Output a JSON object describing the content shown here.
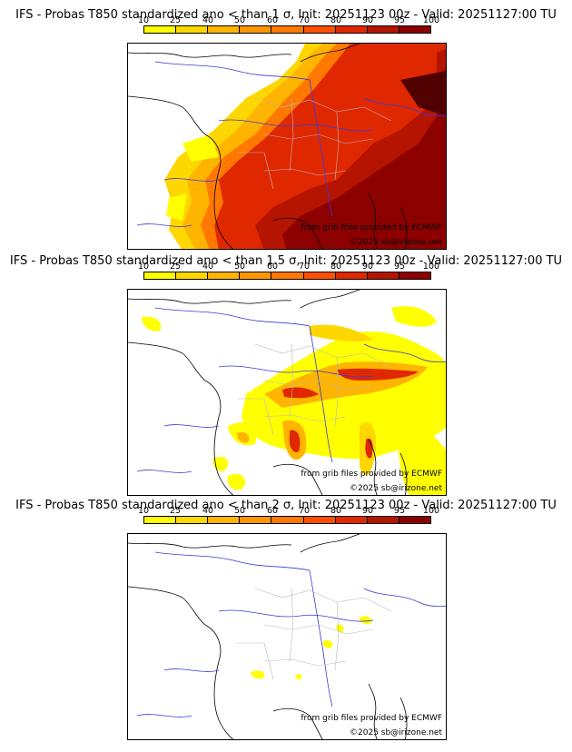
{
  "colorbar": {
    "ticks": [
      "10",
      "25",
      "40",
      "50",
      "60",
      "70",
      "80",
      "90",
      "95",
      "100"
    ],
    "colors": [
      "#ffff00",
      "#ffd700",
      "#ffb400",
      "#ff9600",
      "#ff7800",
      "#ff5000",
      "#e02800",
      "#b41400",
      "#8c0000",
      "#500000"
    ]
  },
  "panels": [
    {
      "title": "IFS - Probas T850  standardized ano < than 1 σ, Init: 20251123 00z - Valid: 20251127:00 TU",
      "credit_source": "from grib files provided by ECMWF",
      "credit_copyright": "©2025 sb@irizone.net"
    },
    {
      "title": "IFS - Probas T850  standardized ano < than 1.5 σ, Init: 20251123 00z - Valid: 20251127:00 TU",
      "credit_source": "from grib files provided by ECMWF",
      "credit_copyright": "©2025 sb@irizone.net"
    },
    {
      "title": "IFS - Probas T850  standardized ano < than 2 σ, Init: 20251123 00z - Valid: 20251127:00 TU",
      "credit_source": "from grib files provided by ECMWF",
      "credit_copyright": "©2025 sb@irizone.net"
    }
  ]
}
